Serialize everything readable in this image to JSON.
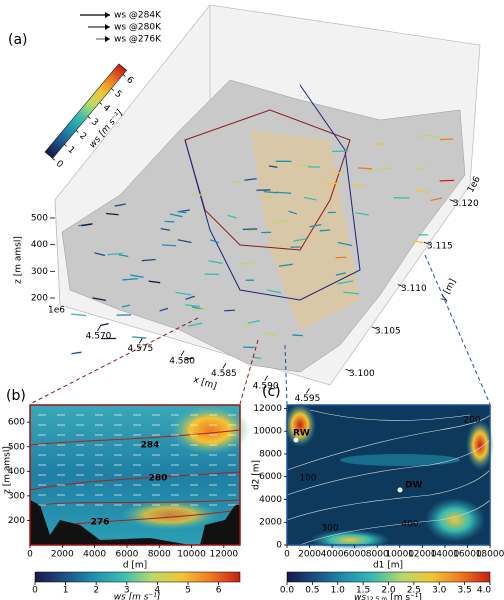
{
  "chart_data": [
    {
      "type": "surface3d",
      "panel_label": "(a)",
      "legend_entries": [
        "ws @284K",
        "ws @280K",
        "ws @276K"
      ],
      "colormap": [
        "#171a45",
        "#1d4f86",
        "#1f8fae",
        "#3bbcb0",
        "#b7d96a",
        "#f2c535",
        "#ee7a22",
        "#c41e12"
      ],
      "clim": [
        0,
        6.3
      ],
      "cticks": [
        0,
        1,
        2,
        3,
        4,
        5,
        6
      ],
      "colorbar_label": "ws [m s⁻¹]",
      "xlabel": "x [m]",
      "x_offset": "1e6",
      "xlim": [
        4.5685,
        4.5965
      ],
      "xticks": [
        {
          "value": 4.57,
          "label": "4.570"
        },
        4.575,
        {
          "value": 4.58,
          "label": "4.580"
        },
        4.585,
        {
          "value": 4.59,
          "label": "4.590"
        },
        4.595
      ],
      "ylabel": "y [m]",
      "y_offset": "1e6",
      "ylim": [
        3.0985,
        3.1235
      ],
      "yticks": [
        {
          "value": 3.1,
          "label": "3.100"
        },
        3.105,
        {
          "value": 3.11,
          "label": "3.110"
        },
        3.115,
        {
          "value": 3.12,
          "label": "3.120"
        }
      ],
      "zlabel": "z [m amsl]",
      "zlim": [
        160,
        540
      ],
      "zticks": [
        200,
        300,
        400,
        500
      ]
    },
    {
      "type": "contour",
      "panel_label": "(b)",
      "xlabel": "d [m]",
      "ylabel": "z [m amsl]",
      "xlim": [
        0,
        13000
      ],
      "xticks": [
        0,
        2000,
        4000,
        6000,
        8000,
        10000,
        12000
      ],
      "ylim": [
        100,
        670
      ],
      "yticks": [
        200,
        300,
        400,
        500,
        600
      ],
      "contour_labels": [
        "284",
        "280",
        "276"
      ],
      "clim": [
        0,
        6.7
      ],
      "cticks": [
        0,
        1,
        2,
        3,
        4,
        5,
        6
      ],
      "colorbar_label": "ws [m s⁻¹]"
    },
    {
      "type": "map",
      "panel_label": "(c)",
      "xlabel": "d1 [m]",
      "ylabel": "d2 [m]",
      "xlim": [
        0,
        18000
      ],
      "xticks": [
        0,
        2000,
        4000,
        6000,
        8000,
        10000,
        12000,
        14000,
        16000,
        18000
      ],
      "ylim": [
        0,
        12300
      ],
      "yticks": [
        0,
        2000,
        4000,
        6000,
        8000,
        10000,
        12000
      ],
      "contour_labels": [
        "100",
        "200",
        "300",
        "400"
      ],
      "sites": [
        "RW",
        "DW"
      ],
      "clim": [
        0,
        4
      ],
      "cticks": [
        {
          "value": 0,
          "label": "0.0"
        },
        0.5,
        {
          "value": 1,
          "label": "1.0"
        },
        1.5,
        {
          "value": 2,
          "label": "2.0"
        },
        2.5,
        {
          "value": 3,
          "label": "3.0"
        },
        3.5,
        {
          "value": 4,
          "label": "4.0"
        }
      ],
      "colorbar_label": [
        "ws",
        "12.5 m",
        "[m s⁻¹]"
      ]
    }
  ]
}
